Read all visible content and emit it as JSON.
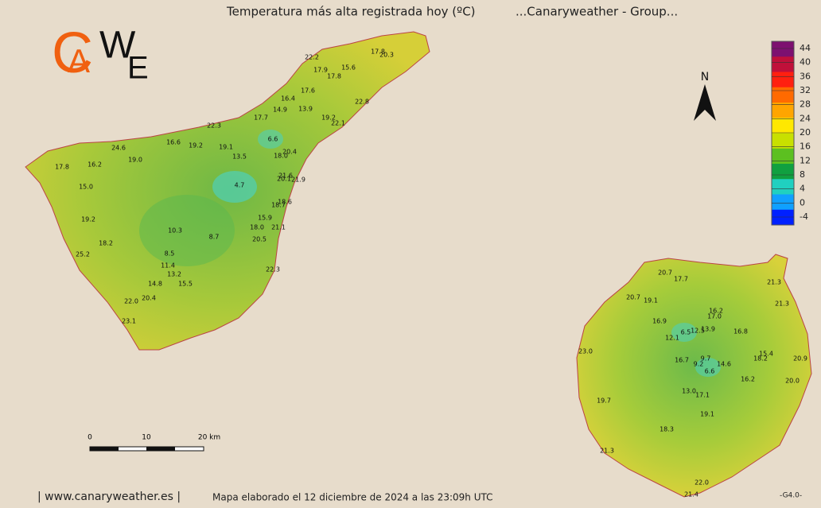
{
  "header": {
    "title": "Temperatura más alta registrada hoy (ºC)",
    "group": "...Canaryweather - Group..."
  },
  "logo": [
    "C",
    "A",
    "W",
    "E"
  ],
  "north": "N",
  "legend": {
    "ticks": [
      44,
      40,
      36,
      32,
      28,
      24,
      20,
      16,
      12,
      8,
      4,
      0,
      -4
    ],
    "colors": [
      "#7d1070",
      "#c0103a",
      "#ff2010",
      "#ff6a00",
      "#ffa500",
      "#ffe800",
      "#c8e000",
      "#5cc020",
      "#10a040",
      "#20d0c0",
      "#10a0ff",
      "#0020ff"
    ]
  },
  "tenerife_labels": [
    "22.2",
    "17.8",
    "20.3",
    "17.9",
    "15.6",
    "17.8",
    "17.6",
    "16.4",
    "22.8",
    "14.9",
    "13.9",
    "17.7",
    "19.2",
    "22.1",
    "22.3",
    "6.6",
    "16.6",
    "19.2",
    "19.1",
    "24.6",
    "20.4",
    "18.0",
    "19.0",
    "13.5",
    "17.8",
    "16.2",
    "21.6",
    "20.1",
    "21.9",
    "4.7",
    "15.0",
    "18.6",
    "18.7",
    "19.2",
    "15.9",
    "18.0",
    "21.1",
    "10.3",
    "8.7",
    "20.5",
    "18.2",
    "25.2",
    "8.5",
    "11.4",
    "22.3",
    "13.2",
    "14.8",
    "15.5",
    "22.0",
    "20.4",
    "23.1"
  ],
  "gran_canaria_labels": [
    "20.7",
    "17.7",
    "21.3",
    "20.7",
    "19.1",
    "21.3",
    "16.2",
    "17.0",
    "16.9",
    "6.5",
    "12.5",
    "13.9",
    "16.8",
    "12.1",
    "23.0",
    "15.4",
    "18.2",
    "20.9",
    "9.7",
    "16.7",
    "9.2",
    "14.6",
    "6.6",
    "16.2",
    "20.0",
    "13.0",
    "17.1",
    "19.7",
    "19.1",
    "18.3",
    "21.3",
    "22.0",
    "21.4"
  ],
  "scale_bar": [
    "0",
    "10",
    "20 km"
  ],
  "footer": {
    "site": "| www.canaryweather.es |",
    "made": "Mapa elaborado el 12 diciembre de 2024 a las 23:09h UTC",
    "version": "-G4.0-"
  }
}
